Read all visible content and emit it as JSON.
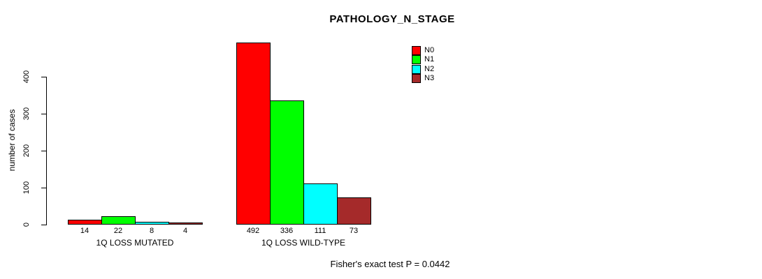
{
  "chart_data": {
    "type": "bar",
    "title": "PATHOLOGY_N_STAGE",
    "ylabel": "number of cases",
    "xlabel": "",
    "yticks": [
      0,
      100,
      200,
      300,
      400
    ],
    "ylim": [
      0,
      520
    ],
    "axis_max_label": 400,
    "grid": false,
    "series_names": [
      "N0",
      "N1",
      "N2",
      "N3"
    ],
    "bar_colors": [
      "#ff0000",
      "#00ff00",
      "#00ffff",
      "#a52a2a"
    ],
    "groups": [
      {
        "label": "1Q LOSS MUTATED",
        "values": [
          14,
          22,
          8,
          4
        ]
      },
      {
        "label": "1Q LOSS WILD-TYPE",
        "values": [
          492,
          336,
          111,
          73
        ]
      }
    ],
    "legend": {
      "position": "top-right",
      "entries": [
        {
          "label": "N0",
          "color": "#ff0000"
        },
        {
          "label": "N1",
          "color": "#00ff00"
        },
        {
          "label": "N2",
          "color": "#00ffff"
        },
        {
          "label": "N3",
          "color": "#a52a2a"
        }
      ]
    },
    "annotation": "Fisher's exact test P = 0.0442"
  }
}
